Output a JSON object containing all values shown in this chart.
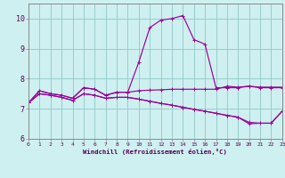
{
  "xlabel": "Windchill (Refroidissement éolien,°C)",
  "xlim": [
    0,
    23
  ],
  "ylim": [
    6,
    10.5
  ],
  "yticks": [
    6,
    7,
    8,
    9,
    10
  ],
  "xticks": [
    0,
    1,
    2,
    3,
    4,
    5,
    6,
    7,
    8,
    9,
    10,
    11,
    12,
    13,
    14,
    15,
    16,
    17,
    18,
    19,
    20,
    21,
    22,
    23
  ],
  "bg_color": "#cff0f0",
  "line_color": "#990099",
  "grid_color": "#99cccc",
  "y_main": [
    7.2,
    7.6,
    7.5,
    7.45,
    7.35,
    7.7,
    7.65,
    7.45,
    7.55,
    7.55,
    8.55,
    9.7,
    9.95,
    10.0,
    10.1,
    9.3,
    9.15,
    7.7,
    7.7,
    7.7,
    7.75,
    7.7,
    7.7,
    7.7
  ],
  "y_flat": [
    7.2,
    7.6,
    7.5,
    7.45,
    7.35,
    7.7,
    7.65,
    7.45,
    7.55,
    7.55,
    7.6,
    7.62,
    7.63,
    7.65,
    7.65,
    7.65,
    7.65,
    7.65,
    7.75,
    7.72,
    7.75,
    7.72,
    7.72,
    7.72
  ],
  "y_low1": [
    7.2,
    7.5,
    7.45,
    7.38,
    7.28,
    7.5,
    7.45,
    7.35,
    7.38,
    7.38,
    7.32,
    7.25,
    7.18,
    7.12,
    7.05,
    6.98,
    6.92,
    6.85,
    6.78,
    6.72,
    6.55,
    6.52,
    6.52,
    6.92
  ],
  "y_low2": [
    7.2,
    7.5,
    7.45,
    7.38,
    7.28,
    7.5,
    7.45,
    7.35,
    7.38,
    7.38,
    7.32,
    7.25,
    7.18,
    7.12,
    7.05,
    6.98,
    6.92,
    6.85,
    6.78,
    6.72,
    6.5,
    6.52,
    6.52,
    6.92
  ]
}
